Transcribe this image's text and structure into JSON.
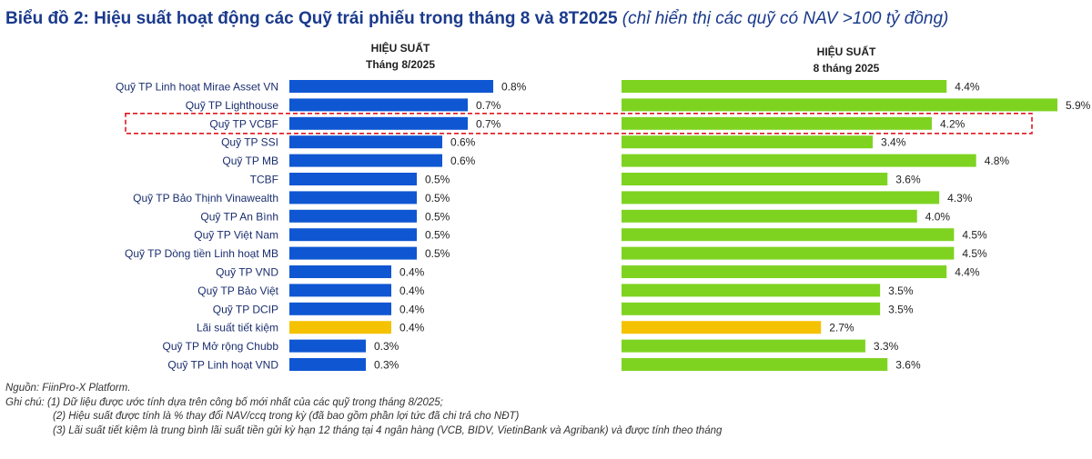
{
  "title": {
    "main": "Biểu đồ 2: Hiệu suất hoạt động các Quỹ trái phiếu trong tháng 8 và 8T2025",
    "sub": "(chỉ hiển thị các quỹ có NAV >100 tỷ đồng)"
  },
  "colors": {
    "monthly_bar": "#0f56d2",
    "ytd_bar": "#7ed321",
    "savings_bar": "#f5c200",
    "highlight_box": "#e0181e",
    "title": "#1a3a8c",
    "label_text": "#1a2e6e"
  },
  "chart_data": [
    {
      "type": "bar",
      "orientation": "horizontal",
      "title_line1": "HIỆU SUẤT",
      "title_line2": "Tháng 8/2025",
      "unit": "%",
      "categories": [
        "Quỹ TP Linh hoạt Mirae Asset VN",
        "Quỹ TP Lighthouse",
        "Quỹ TP VCBF",
        "Quỹ TP SSI",
        "Quỹ TP MB",
        "TCBF",
        "Quỹ TP Bảo Thịnh Vinawealth",
        "Quỹ TP An Bình",
        "Quỹ TP Việt Nam",
        "Quỹ TP Dòng tiền Linh hoạt MB",
        "Quỹ TP VND",
        "Quỹ TP Bảo Việt",
        "Quỹ TP DCIP",
        "Lãi suất tiết kiệm",
        "Quỹ TP Mở rộng Chubb",
        "Quỹ TP Linh hoạt VND"
      ],
      "values": [
        0.8,
        0.7,
        0.7,
        0.6,
        0.6,
        0.5,
        0.5,
        0.5,
        0.5,
        0.5,
        0.4,
        0.4,
        0.4,
        0.4,
        0.3,
        0.3
      ],
      "labels": [
        "0.8%",
        "0.7%",
        "0.7%",
        "0.6%",
        "0.6%",
        "0.5%",
        "0.5%",
        "0.5%",
        "0.5%",
        "0.5%",
        "0.4%",
        "0.4%",
        "0.4%",
        "0.4%",
        "0.3%",
        "0.3%"
      ],
      "xlim": [
        0,
        0.8
      ],
      "highlight_index": 2,
      "special_index": 13
    },
    {
      "type": "bar",
      "orientation": "horizontal",
      "title_line1": "HIỆU SUẤT",
      "title_line2": "8 tháng 2025",
      "unit": "%",
      "values": [
        4.4,
        5.9,
        4.2,
        3.4,
        4.8,
        3.6,
        4.3,
        4.0,
        4.5,
        4.5,
        4.4,
        3.5,
        3.5,
        2.7,
        3.3,
        3.6
      ],
      "labels": [
        "4.4%",
        "5.9%",
        "4.2%",
        "3.4%",
        "4.8%",
        "3.6%",
        "4.3%",
        "4.0%",
        "4.5%",
        "4.5%",
        "4.4%",
        "3.5%",
        "3.5%",
        "2.7%",
        "3.3%",
        "3.6%"
      ],
      "xlim": [
        0,
        5.9
      ],
      "highlight_index": 2,
      "special_index": 13
    }
  ],
  "notes": {
    "source": "Nguồn: FiinPro-X Platform.",
    "note1": "Ghi chú: (1) Dữ liệu được ước tính dựa trên công bố mới nhất của các quỹ trong tháng 8/2025;",
    "note2": "(2) Hiệu suất được tính là % thay đổi NAV/ccq trong kỳ (đã bao gồm phần lợi tức đã chi trả cho NĐT)",
    "note3": "(3) Lãi suất tiết kiệm là trung bình lãi suất tiền gửi kỳ hạn 12 tháng tại 4 ngân hàng (VCB, BIDV, VietinBank và Agribank) và được tính theo tháng"
  }
}
